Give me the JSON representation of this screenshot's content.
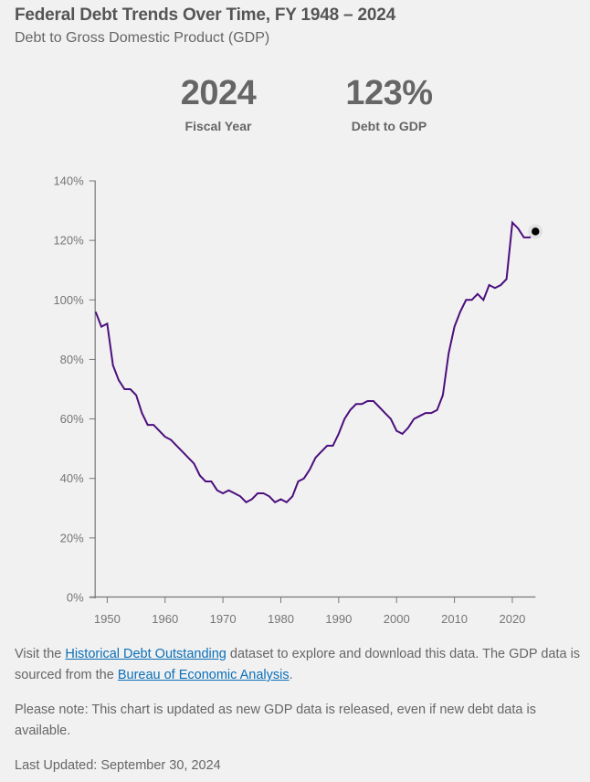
{
  "header": {
    "title": "Federal Debt Trends Over Time, FY 1948 – 2024",
    "subtitle": "Debt to Gross Domestic Product (GDP)"
  },
  "stats": {
    "year_value": "2024",
    "year_label": "Fiscal Year",
    "debt_value": "123%",
    "debt_label": "Debt to GDP"
  },
  "colors": {
    "line": "#4b0f7d",
    "marker": "#000000",
    "axis": "#777777",
    "link": "#0b6fb8",
    "background": "#f1f1f1"
  },
  "footer": {
    "p1_prefix": "Visit the ",
    "p1_link1": "Historical Debt Outstanding",
    "p1_middle": " dataset to explore and download this data. The GDP data is sourced from the ",
    "p1_link2": "Bureau of Economic Analysis",
    "p1_suffix": ".",
    "p2": "Please note: This chart is updated as new GDP data is released, even if new debt data is available.",
    "p3": "Last Updated: September 30, 2024"
  },
  "chart_data": {
    "type": "line",
    "title": "Federal Debt Trends Over Time, FY 1948 – 2024",
    "subtitle": "Debt to Gross Domestic Product (GDP)",
    "xlabel": "",
    "ylabel": "",
    "xlim": [
      1948,
      2024
    ],
    "ylim": [
      0,
      140
    ],
    "x_ticks": [
      1950,
      1960,
      1970,
      1980,
      1990,
      2000,
      2010,
      2020
    ],
    "x_tick_labels": [
      "1950",
      "1960",
      "1970",
      "1980",
      "1990",
      "2000",
      "2010",
      "2020"
    ],
    "y_ticks": [
      0,
      20,
      40,
      60,
      80,
      100,
      120,
      140
    ],
    "y_tick_labels": [
      "0%",
      "20%",
      "40%",
      "60%",
      "80%",
      "100%",
      "120%",
      "140%"
    ],
    "grid": false,
    "legend": "none",
    "highlight": {
      "x": 2024,
      "y": 123
    },
    "series": [
      {
        "name": "Debt to GDP (%)",
        "x": [
          1948,
          1949,
          1950,
          1951,
          1952,
          1953,
          1954,
          1955,
          1956,
          1957,
          1958,
          1959,
          1960,
          1961,
          1962,
          1963,
          1964,
          1965,
          1966,
          1967,
          1968,
          1969,
          1970,
          1971,
          1972,
          1973,
          1974,
          1975,
          1976,
          1977,
          1978,
          1979,
          1980,
          1981,
          1982,
          1983,
          1984,
          1985,
          1986,
          1987,
          1988,
          1989,
          1990,
          1991,
          1992,
          1993,
          1994,
          1995,
          1996,
          1997,
          1998,
          1999,
          2000,
          2001,
          2002,
          2003,
          2004,
          2005,
          2006,
          2007,
          2008,
          2009,
          2010,
          2011,
          2012,
          2013,
          2014,
          2015,
          2016,
          2017,
          2018,
          2019,
          2020,
          2021,
          2022,
          2023,
          2024
        ],
        "values": [
          96,
          91,
          92,
          78,
          73,
          70,
          70,
          68,
          62,
          58,
          58,
          56,
          54,
          53,
          51,
          49,
          47,
          45,
          41,
          39,
          39,
          36,
          35,
          36,
          35,
          34,
          32,
          33,
          35,
          35,
          34,
          32,
          33,
          32,
          34,
          39,
          40,
          43,
          47,
          49,
          51,
          51,
          55,
          60,
          63,
          65,
          65,
          66,
          66,
          64,
          62,
          60,
          56,
          55,
          57,
          60,
          61,
          62,
          62,
          63,
          68,
          82,
          91,
          96,
          100,
          100,
          102,
          100,
          105,
          104,
          105,
          107,
          126,
          124,
          121,
          121,
          123
        ]
      }
    ]
  }
}
